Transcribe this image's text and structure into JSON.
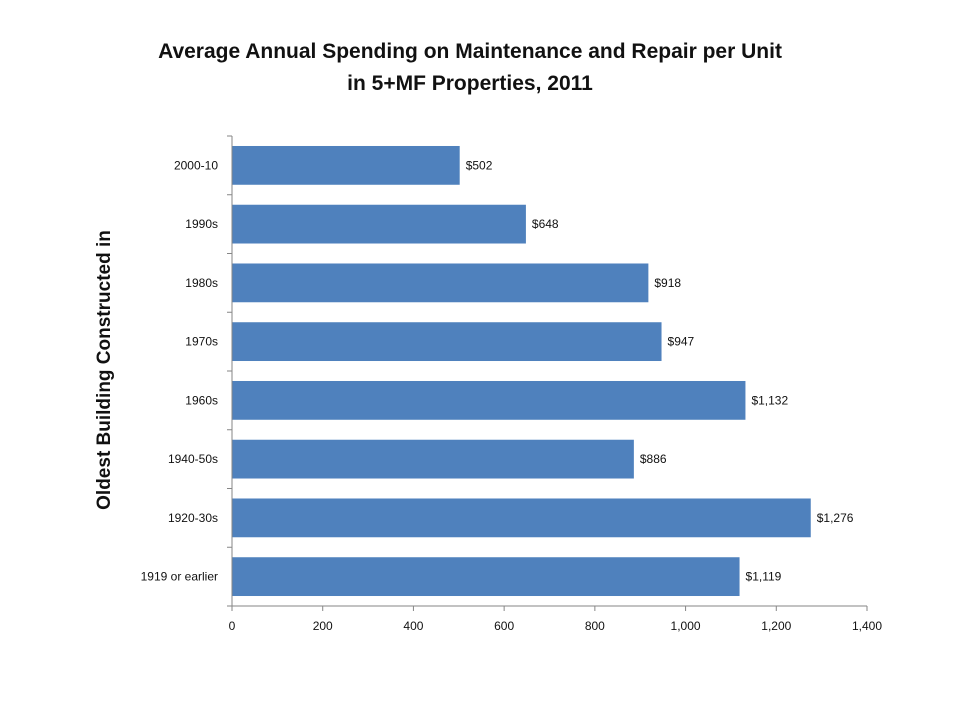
{
  "chart_data": {
    "type": "bar",
    "orientation": "horizontal",
    "title_line1": "Average Annual Spending on Maintenance and Repair per Unit",
    "title_line2": "in 5+MF Properties, 2011",
    "xlabel": "",
    "ylabel": "Oldest Building Constructed in",
    "categories": [
      "2000-10",
      "1990s",
      "1980s",
      "1970s",
      "1960s",
      "1940-50s",
      "1920-30s",
      "1919 or earlier"
    ],
    "values": [
      502,
      648,
      918,
      947,
      1132,
      886,
      1276,
      1119
    ],
    "data_labels": [
      "$502",
      "$648",
      "$918",
      "$947",
      "$1,132",
      "$886",
      "$1,276",
      "$1,119"
    ],
    "xlim": [
      0,
      1400
    ],
    "x_ticks": [
      0,
      200,
      400,
      600,
      800,
      1000,
      1200,
      1400
    ],
    "x_tick_labels": [
      "0",
      "200",
      "400",
      "600",
      "800",
      "1,000",
      "1,200",
      "1,400"
    ],
    "bar_color": "#4F81BD",
    "grid": false,
    "legend": "none"
  }
}
